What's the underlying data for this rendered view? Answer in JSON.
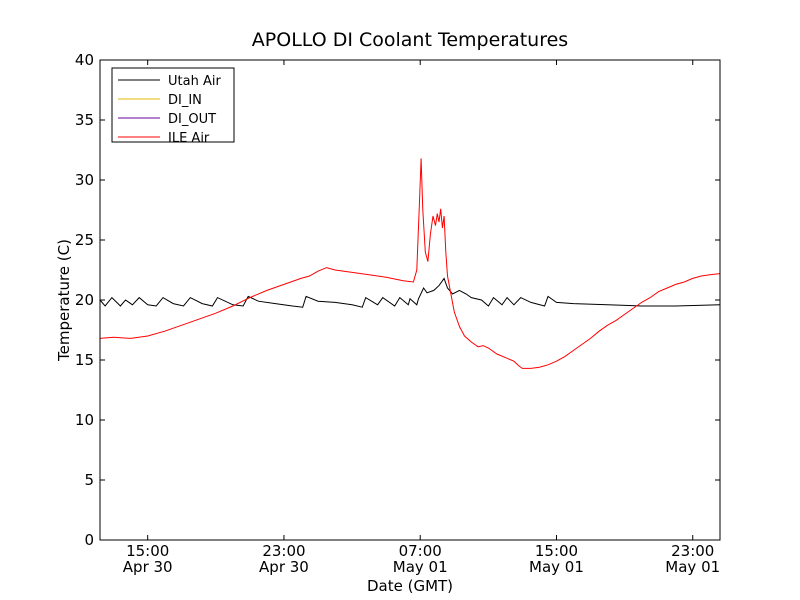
{
  "chart_data": {
    "type": "line",
    "title": "APOLLO DI Coolant Temperatures",
    "xlabel": "Date (GMT)",
    "ylabel": "Temperature (C)",
    "ylim": [
      0,
      40
    ],
    "yticks": [
      0,
      5,
      10,
      15,
      20,
      25,
      30,
      35,
      40
    ],
    "xlim_hours": [
      12.2,
      48.6
    ],
    "xticks": [
      {
        "hour": 15,
        "time": "15:00",
        "date": "Apr 30"
      },
      {
        "hour": 23,
        "time": "23:00",
        "date": "Apr 30"
      },
      {
        "hour": 31,
        "time": "07:00",
        "date": "May 01"
      },
      {
        "hour": 39,
        "time": "15:00",
        "date": "May 01"
      },
      {
        "hour": 47,
        "time": "23:00",
        "date": "May 01"
      }
    ],
    "legend_position": "top-left",
    "series": [
      {
        "name": "Utah Air",
        "color": "#000000",
        "points": [
          [
            12.2,
            20.0
          ],
          [
            12.5,
            19.5
          ],
          [
            12.9,
            20.2
          ],
          [
            13.4,
            19.5
          ],
          [
            13.7,
            20.0
          ],
          [
            14.1,
            19.6
          ],
          [
            14.5,
            20.2
          ],
          [
            15.0,
            19.6
          ],
          [
            15.5,
            19.5
          ],
          [
            15.9,
            20.2
          ],
          [
            16.5,
            19.7
          ],
          [
            17.1,
            19.5
          ],
          [
            17.5,
            20.2
          ],
          [
            18.2,
            19.7
          ],
          [
            18.8,
            19.5
          ],
          [
            19.1,
            20.2
          ],
          [
            20.0,
            19.6
          ],
          [
            20.6,
            19.5
          ],
          [
            20.9,
            20.3
          ],
          [
            21.5,
            19.9
          ],
          [
            22.5,
            19.7
          ],
          [
            23.5,
            19.5
          ],
          [
            24.1,
            19.4
          ],
          [
            24.3,
            20.3
          ],
          [
            25.0,
            19.9
          ],
          [
            26.0,
            19.8
          ],
          [
            27.0,
            19.6
          ],
          [
            27.6,
            19.4
          ],
          [
            27.8,
            20.2
          ],
          [
            28.5,
            19.6
          ],
          [
            28.8,
            20.2
          ],
          [
            29.5,
            19.5
          ],
          [
            29.8,
            20.2
          ],
          [
            30.3,
            19.6
          ],
          [
            30.4,
            20.1
          ],
          [
            30.8,
            19.6
          ],
          [
            30.9,
            20.1
          ],
          [
            31.2,
            21.0
          ],
          [
            31.4,
            20.6
          ],
          [
            31.8,
            20.8
          ],
          [
            32.1,
            21.2
          ],
          [
            32.4,
            21.8
          ],
          [
            32.6,
            21.0
          ],
          [
            32.9,
            20.5
          ],
          [
            33.3,
            20.8
          ],
          [
            33.7,
            20.5
          ],
          [
            34.0,
            20.2
          ],
          [
            34.6,
            20.0
          ],
          [
            35.0,
            19.5
          ],
          [
            35.3,
            20.2
          ],
          [
            35.8,
            19.6
          ],
          [
            36.1,
            20.2
          ],
          [
            36.5,
            19.6
          ],
          [
            36.9,
            20.2
          ],
          [
            37.5,
            19.8
          ],
          [
            38.3,
            19.5
          ],
          [
            38.5,
            20.3
          ],
          [
            39.0,
            19.8
          ],
          [
            40.0,
            19.7
          ],
          [
            42.0,
            19.6
          ],
          [
            44.0,
            19.5
          ],
          [
            46.0,
            19.5
          ],
          [
            48.6,
            19.6
          ]
        ]
      },
      {
        "name": "DI_IN",
        "color": "#e6b800",
        "points": []
      },
      {
        "name": "DI_OUT",
        "color": "#660099",
        "points": []
      },
      {
        "name": "ILE Air",
        "color": "#ff0000",
        "points": [
          [
            12.2,
            16.8
          ],
          [
            13.0,
            16.9
          ],
          [
            14.0,
            16.8
          ],
          [
            15.0,
            17.0
          ],
          [
            16.0,
            17.4
          ],
          [
            17.0,
            17.9
          ],
          [
            18.0,
            18.4
          ],
          [
            19.0,
            18.9
          ],
          [
            20.0,
            19.5
          ],
          [
            21.0,
            20.2
          ],
          [
            22.0,
            20.8
          ],
          [
            23.0,
            21.3
          ],
          [
            24.0,
            21.8
          ],
          [
            24.5,
            22.0
          ],
          [
            25.0,
            22.4
          ],
          [
            25.5,
            22.7
          ],
          [
            26.0,
            22.5
          ],
          [
            27.0,
            22.3
          ],
          [
            28.0,
            22.1
          ],
          [
            29.0,
            21.9
          ],
          [
            30.0,
            21.6
          ],
          [
            30.6,
            21.5
          ],
          [
            30.8,
            22.5
          ],
          [
            30.95,
            28.0
          ],
          [
            31.05,
            31.8
          ],
          [
            31.15,
            27.5
          ],
          [
            31.3,
            24.0
          ],
          [
            31.45,
            23.2
          ],
          [
            31.6,
            25.5
          ],
          [
            31.75,
            27.0
          ],
          [
            31.9,
            26.2
          ],
          [
            32.0,
            27.2
          ],
          [
            32.1,
            26.5
          ],
          [
            32.2,
            27.6
          ],
          [
            32.3,
            26.0
          ],
          [
            32.4,
            27.0
          ],
          [
            32.5,
            24.0
          ],
          [
            32.6,
            22.0
          ],
          [
            32.8,
            20.5
          ],
          [
            33.0,
            19.0
          ],
          [
            33.3,
            17.8
          ],
          [
            33.6,
            17.0
          ],
          [
            34.0,
            16.5
          ],
          [
            34.4,
            16.1
          ],
          [
            34.7,
            16.2
          ],
          [
            35.0,
            16.0
          ],
          [
            35.5,
            15.5
          ],
          [
            36.0,
            15.2
          ],
          [
            36.5,
            14.9
          ],
          [
            36.8,
            14.5
          ],
          [
            37.0,
            14.3
          ],
          [
            37.5,
            14.3
          ],
          [
            38.0,
            14.4
          ],
          [
            38.5,
            14.6
          ],
          [
            39.0,
            14.9
          ],
          [
            39.5,
            15.3
          ],
          [
            40.0,
            15.8
          ],
          [
            40.5,
            16.3
          ],
          [
            41.0,
            16.8
          ],
          [
            41.5,
            17.4
          ],
          [
            42.0,
            17.9
          ],
          [
            42.5,
            18.3
          ],
          [
            43.0,
            18.8
          ],
          [
            43.5,
            19.3
          ],
          [
            44.0,
            19.8
          ],
          [
            44.5,
            20.2
          ],
          [
            45.0,
            20.7
          ],
          [
            45.5,
            21.0
          ],
          [
            46.0,
            21.3
          ],
          [
            46.5,
            21.5
          ],
          [
            47.0,
            21.8
          ],
          [
            47.5,
            22.0
          ],
          [
            48.0,
            22.1
          ],
          [
            48.6,
            22.2
          ]
        ]
      }
    ]
  }
}
